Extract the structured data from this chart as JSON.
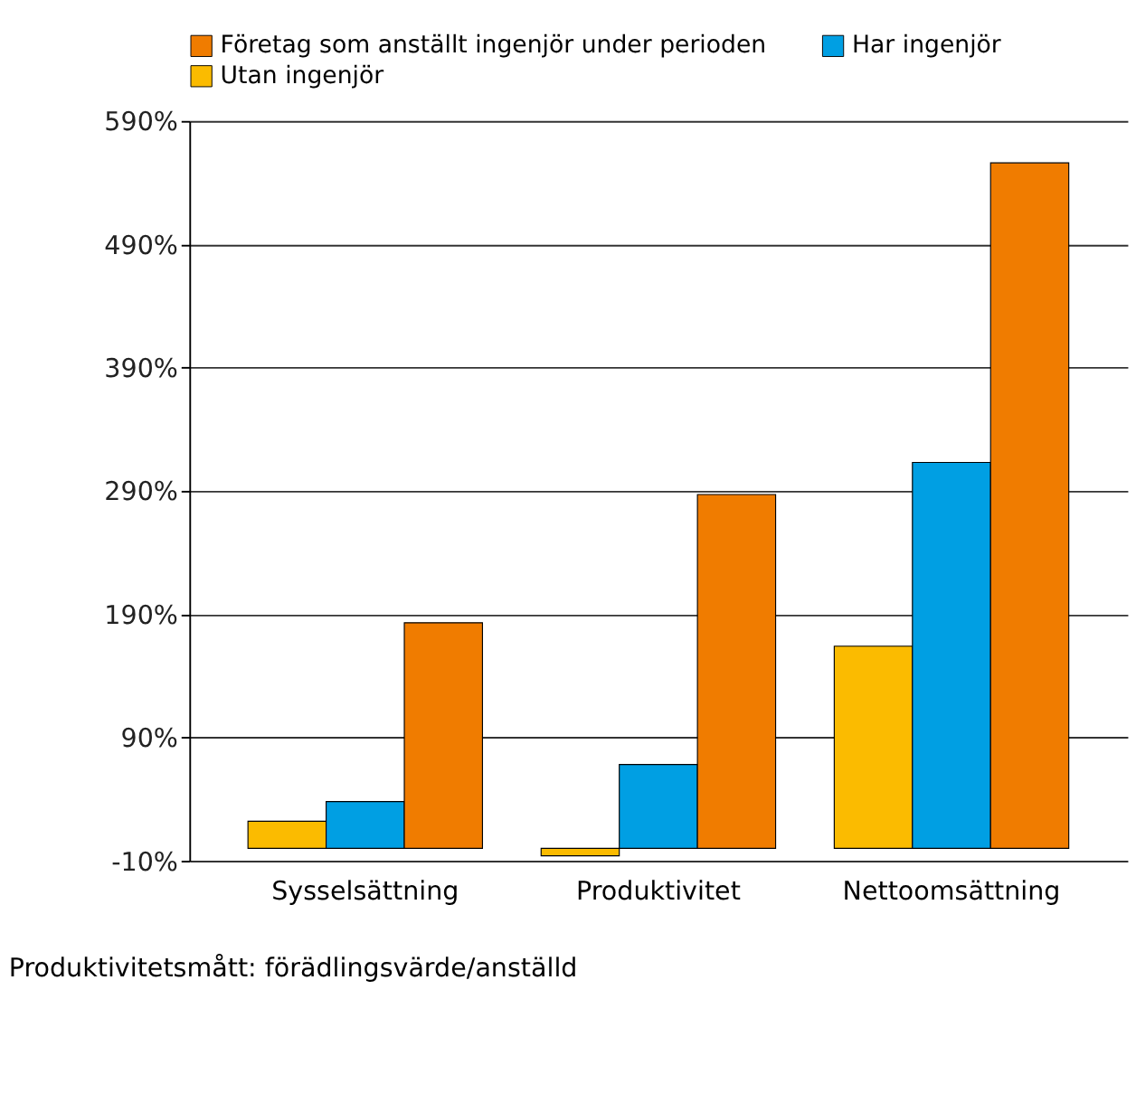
{
  "chart_data": {
    "type": "bar",
    "categories": [
      "Sysselsättning",
      "Produktivitet",
      "Nettoomsättning"
    ],
    "series": [
      {
        "name": "Utan ingenjör",
        "color": "#fbbb00",
        "values": [
          22,
          -6,
          164
        ]
      },
      {
        "name": "Har ingenjör",
        "color": "#009fe3",
        "values": [
          38,
          68,
          313
        ]
      },
      {
        "name": "Företag som anställt ingenjör under perioden",
        "color": "#f07c00",
        "values": [
          183,
          287,
          556
        ]
      }
    ],
    "ylim": [
      -10,
      590
    ],
    "yticks": [
      {
        "value": -10,
        "label": "-10%"
      },
      {
        "value": 90,
        "label": "90%"
      },
      {
        "value": 190,
        "label": "190%"
      },
      {
        "value": 290,
        "label": "290%"
      },
      {
        "value": 390,
        "label": "390%"
      },
      {
        "value": 490,
        "label": "490%"
      },
      {
        "value": 590,
        "label": "590%"
      }
    ],
    "grid": "y",
    "legend": "top",
    "annotations": [
      "Produktivitetsmått: förädlingsvärde/anställd"
    ]
  }
}
